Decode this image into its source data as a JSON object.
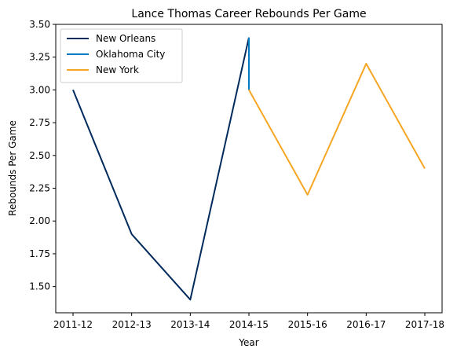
{
  "chart_data": {
    "type": "line",
    "title": "Lance Thomas Career Rebounds Per Game",
    "xlabel": "Year",
    "ylabel": "Rebounds Per Game",
    "categories": [
      "2011-12",
      "2012-13",
      "2013-14",
      "2014-15",
      "2015-16",
      "2016-17",
      "2017-18"
    ],
    "ylim": [
      1.3,
      3.5
    ],
    "yticks": [
      1.5,
      1.75,
      2.0,
      2.25,
      2.5,
      2.75,
      3.0,
      3.25,
      3.5
    ],
    "ytick_labels": [
      "1.50",
      "1.75",
      "2.00",
      "2.25",
      "2.50",
      "2.75",
      "3.00",
      "3.25",
      "3.50"
    ],
    "grid": false,
    "legend_position": "top-left",
    "series": [
      {
        "name": "New Orleans",
        "color": "#002B5C",
        "points": [
          {
            "x": "2011-12",
            "y": 3.0
          },
          {
            "x": "2012-13",
            "y": 1.9
          },
          {
            "x": "2013-14",
            "y": 1.4
          },
          {
            "x": "2014-15",
            "y": 3.4
          }
        ]
      },
      {
        "name": "Oklahoma City",
        "color": "#007AC1",
        "points": [
          {
            "x": "2014-15",
            "y": 3.4
          },
          {
            "x": "2014-15",
            "y": 3.0
          }
        ]
      },
      {
        "name": "New York",
        "color": "#F5A623",
        "points": [
          {
            "x": "2014-15",
            "y": 3.0
          },
          {
            "x": "2015-16",
            "y": 2.2
          },
          {
            "x": "2016-17",
            "y": 3.2
          },
          {
            "x": "2017-18",
            "y": 2.4
          }
        ]
      }
    ]
  }
}
